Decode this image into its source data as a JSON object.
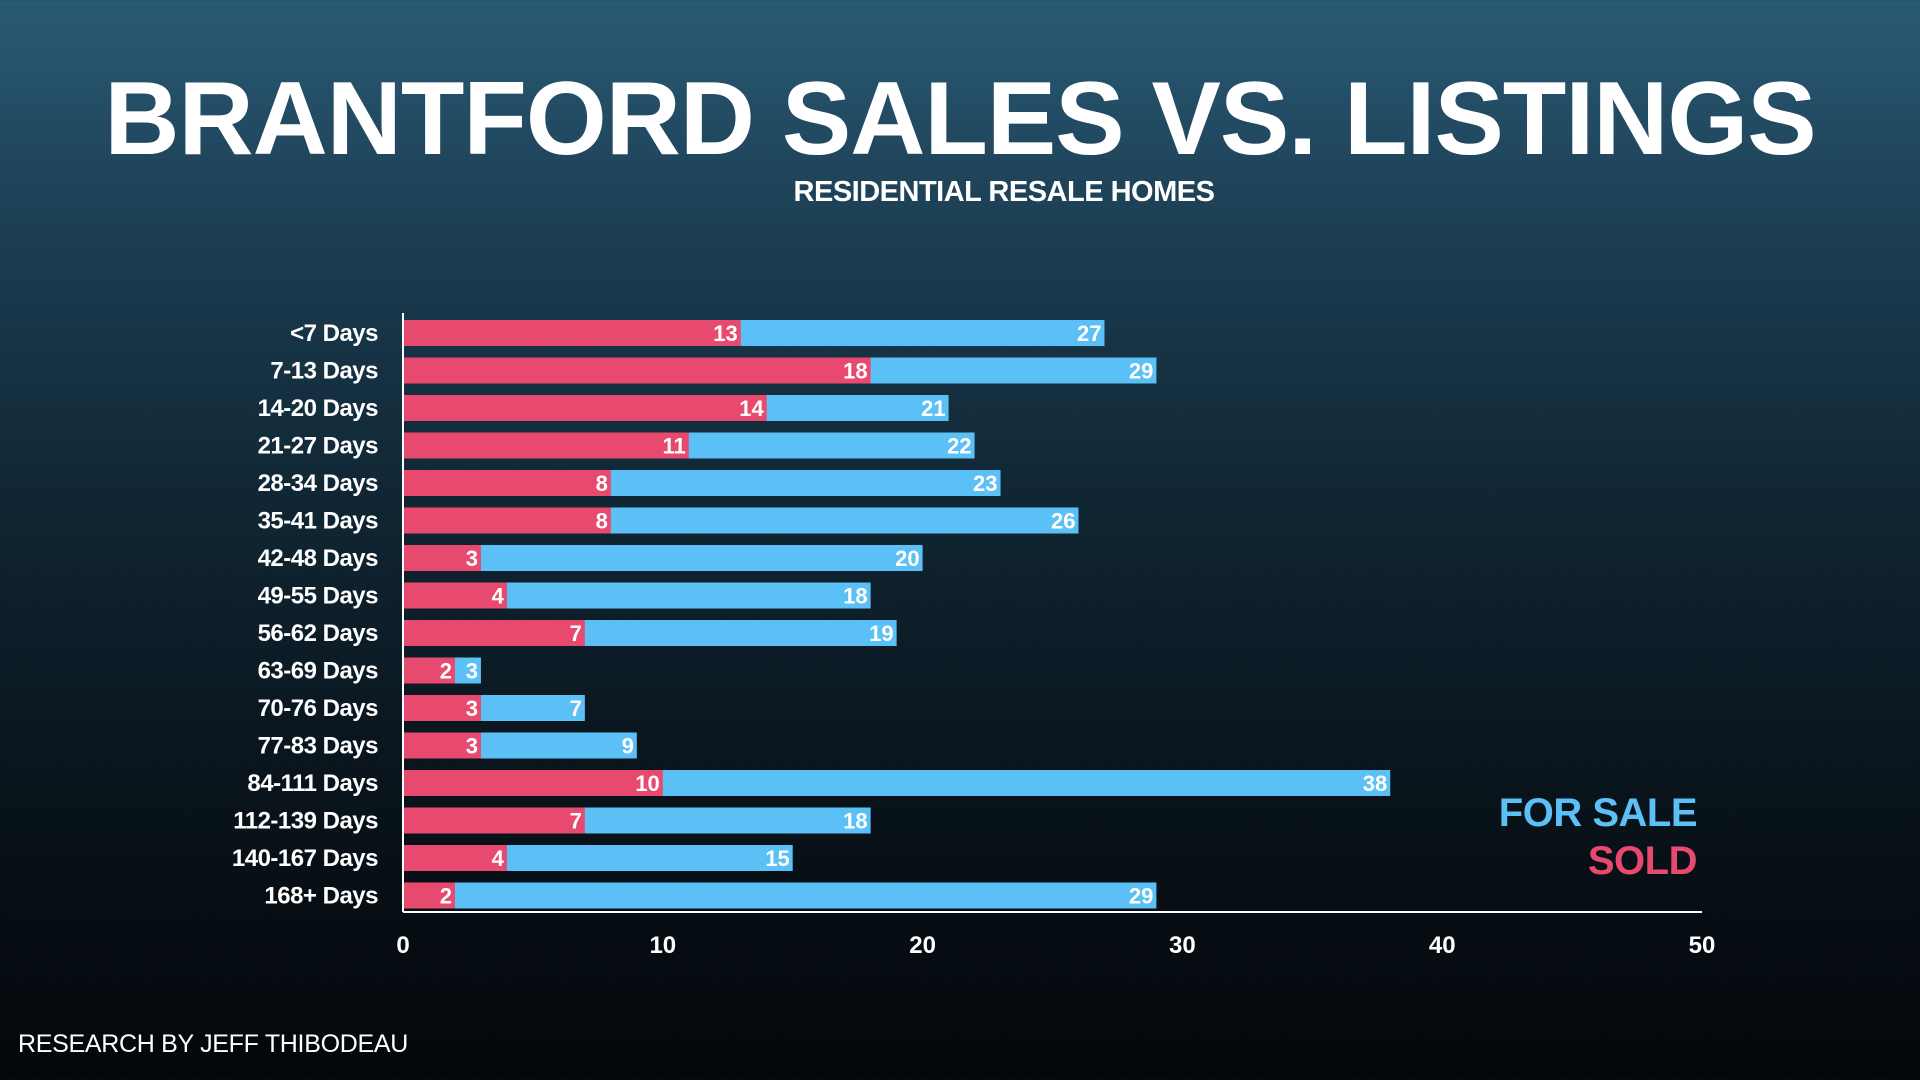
{
  "chart_data": {
    "type": "bar",
    "orientation": "horizontal",
    "title": "BRANTFORD SALES VS. LISTINGS",
    "subtitle": "RESIDENTIAL RESALE HOMES",
    "categories": [
      "<7 Days",
      "7-13 Days",
      "14-20 Days",
      "21-27 Days",
      "28-34 Days",
      "35-41 Days",
      "42-48 Days",
      "49-55 Days",
      "56-62 Days",
      "63-69 Days",
      "70-76 Days",
      "77-83 Days",
      "84-111 Days",
      "112-139 Days",
      "140-167 Days",
      "168+ Days"
    ],
    "series": [
      {
        "name": "FOR SALE",
        "color": "#5bc0f5",
        "values": [
          27,
          29,
          21,
          22,
          23,
          26,
          20,
          18,
          19,
          3,
          7,
          9,
          38,
          18,
          15,
          29
        ]
      },
      {
        "name": "SOLD",
        "color": "#e84a6f",
        "values": [
          13,
          18,
          14,
          11,
          8,
          8,
          3,
          4,
          7,
          2,
          3,
          3,
          10,
          7,
          4,
          2
        ]
      }
    ],
    "xlim": [
      0,
      50
    ],
    "xticks": [
      "0",
      "10",
      "20",
      "30",
      "40",
      "50"
    ],
    "grid": false,
    "legend_position": "bottom-right",
    "legend": [
      "FOR SALE",
      "SOLD"
    ]
  },
  "footer": {
    "credit": "RESEARCH BY JEFF THIBODEAU"
  }
}
